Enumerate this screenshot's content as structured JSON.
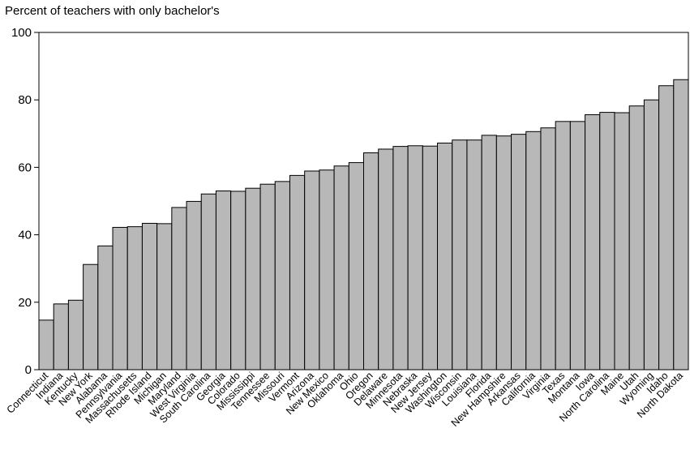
{
  "chart_data": {
    "type": "bar",
    "title": "",
    "ylabel": "Percent of teachers with only bachelor's",
    "xlabel": "",
    "ylim": [
      0,
      100
    ],
    "yticks": [
      0,
      20,
      40,
      60,
      80,
      100
    ],
    "grid": false,
    "bar_color": "#b8b8b8",
    "categories": [
      "Connecticut",
      "Indiana",
      "Kentucky",
      "New York",
      "Alabama",
      "Pennsylvania",
      "Massachusetts",
      "Rhode Island",
      "Michigan",
      "Maryland",
      "West Virginia",
      "South Carolina",
      "Georgia",
      "Colorado",
      "Mississippi",
      "Tennessee",
      "Missouri",
      "Vermont",
      "Arizona",
      "New Mexico",
      "Oklahoma",
      "Ohio",
      "Oregon",
      "Delaware",
      "Minnesota",
      "Nebraska",
      "New Jersey",
      "Washington",
      "Wisconsin",
      "Louisiana",
      "Florida",
      "New Hampshire",
      "Arkansas",
      "California",
      "Virginia",
      "Texas",
      "Montana",
      "Iowa",
      "North Carolina",
      "Maine",
      "Utah",
      "Wyoming",
      "Idaho",
      "North Dakota"
    ],
    "values": [
      14.7,
      19.5,
      20.6,
      31.2,
      36.7,
      42.2,
      42.4,
      43.4,
      43.3,
      48.1,
      49.9,
      52.1,
      53.0,
      52.9,
      53.8,
      55.0,
      55.8,
      57.6,
      58.9,
      59.2,
      60.4,
      61.4,
      64.3,
      65.4,
      66.2,
      66.4,
      66.3,
      67.2,
      68.1,
      68.1,
      69.5,
      69.3,
      69.8,
      70.6,
      71.7,
      73.6,
      73.6,
      75.6,
      76.3,
      76.2,
      78.2,
      80.0,
      84.2,
      86.0
    ]
  }
}
